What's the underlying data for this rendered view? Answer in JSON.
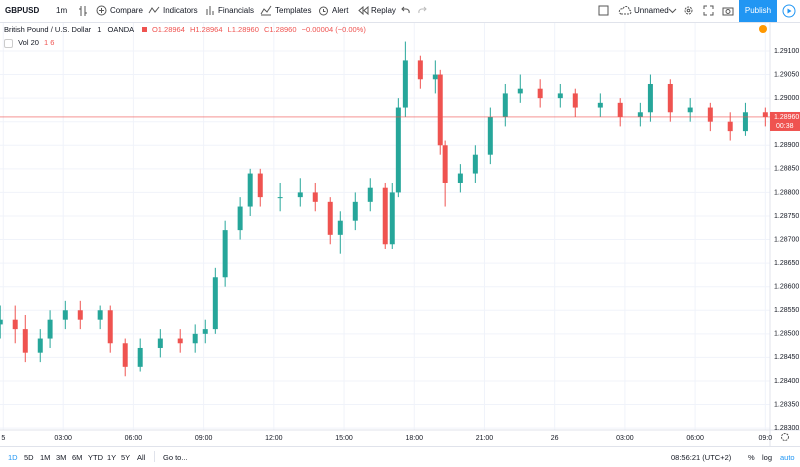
{
  "toolbar": {
    "symbol": "GBPUSD",
    "interval": "1m",
    "buttons": [
      "Compare",
      "Indicators",
      "Financials",
      "Templates",
      "Alert",
      "Replay"
    ],
    "layout": "Unnamed",
    "publish": "Publish"
  },
  "legend": {
    "name": "British Pound / U.S. Dollar",
    "interval": "1",
    "source": "OANDA",
    "ohlc": [
      "O1.28964",
      "H1.28964",
      "L1.28960",
      "C1.28960",
      "−0.00004 (−0.00%)"
    ],
    "volume": "Vol 20",
    "volume_values": "1 6"
  },
  "chart_data": {
    "type": "candlestick",
    "up_color": "#26a69a",
    "down_color": "#ef5350",
    "grid": true,
    "x": [
      0.31,
      0.95,
      1.38,
      2.02,
      2.44,
      3.09,
      3.73,
      4.58,
      5.01,
      5.65,
      6.29,
      7.15,
      8.0,
      8.64,
      9.07,
      9.5,
      9.92,
      10.56,
      10.99,
      11.42,
      12.27,
      13.13,
      13.77,
      14.41,
      14.84,
      15.48,
      16.12,
      16.76,
      17.06,
      17.32,
      17.62,
      18.26,
      18.9,
      19.11,
      19.32,
      19.97,
      20.61,
      21.25,
      21.89,
      22.53,
      23.38,
      24.24,
      24.88,
      25.95,
      26.8,
      27.66,
      28.09,
      28.94,
      29.79,
      30.65,
      31.5,
      32.15,
      33.0
    ],
    "open": [
      1.2852,
      1.2853,
      1.2851,
      1.2846,
      1.2849,
      1.2853,
      1.2855,
      1.2853,
      1.2855,
      1.2848,
      1.2843,
      1.2847,
      1.2849,
      1.2848,
      1.285,
      1.2851,
      1.2862,
      1.2872,
      1.2877,
      1.2884,
      1.2879,
      1.2879,
      1.288,
      1.2878,
      1.2871,
      1.2874,
      1.2878,
      1.2881,
      1.2869,
      1.288,
      1.2898,
      1.2908,
      1.2904,
      1.2905,
      1.289,
      1.2882,
      1.2884,
      1.2888,
      1.2896,
      1.2901,
      1.2902,
      1.29,
      1.2901,
      1.2898,
      1.2899,
      1.2896,
      1.2897,
      1.2903,
      1.2897,
      1.2898,
      1.2895,
      1.2893,
      1.2897
    ],
    "high": [
      1.2856,
      1.2856,
      1.2854,
      1.2851,
      1.2855,
      1.2857,
      1.2857,
      1.2856,
      1.2856,
      1.2849,
      1.2849,
      1.2851,
      1.2851,
      1.2852,
      1.2853,
      1.2864,
      1.2874,
      1.2879,
      1.2885,
      1.2885,
      1.2882,
      1.2883,
      1.2882,
      1.2879,
      1.2876,
      1.288,
      1.2883,
      1.2882,
      1.2882,
      1.29,
      1.2912,
      1.2909,
      1.2908,
      1.2906,
      1.2891,
      1.2886,
      1.289,
      1.2898,
      1.2903,
      1.2905,
      1.2904,
      1.2903,
      1.2902,
      1.2901,
      1.29,
      1.2899,
      1.2905,
      1.2904,
      1.29,
      1.2899,
      1.2897,
      1.2899,
      1.2898
    ],
    "low": [
      1.2849,
      1.2848,
      1.2844,
      1.2844,
      1.2847,
      1.2851,
      1.2851,
      1.2851,
      1.2846,
      1.2841,
      1.2842,
      1.2845,
      1.2846,
      1.2846,
      1.2848,
      1.285,
      1.286,
      1.287,
      1.2875,
      1.2877,
      1.2876,
      1.2877,
      1.2876,
      1.2869,
      1.2867,
      1.2872,
      1.2876,
      1.2868,
      1.2868,
      1.2879,
      1.2896,
      1.2902,
      1.2901,
      1.2888,
      1.2877,
      1.288,
      1.2882,
      1.2886,
      1.2894,
      1.2899,
      1.2898,
      1.2898,
      1.2896,
      1.2896,
      1.2894,
      1.2894,
      1.2895,
      1.2895,
      1.2895,
      1.2893,
      1.2891,
      1.2892,
      1.2894
    ],
    "close": [
      1.2853,
      1.2851,
      1.2846,
      1.2849,
      1.2853,
      1.2855,
      1.2853,
      1.2855,
      1.2848,
      1.2843,
      1.2847,
      1.2849,
      1.2848,
      1.285,
      1.2851,
      1.2862,
      1.2872,
      1.2877,
      1.2884,
      1.2879,
      1.2879,
      1.288,
      1.2878,
      1.2871,
      1.2874,
      1.2878,
      1.2881,
      1.2869,
      1.288,
      1.2898,
      1.2908,
      1.2904,
      1.2905,
      1.289,
      1.2882,
      1.2884,
      1.2888,
      1.2896,
      1.2901,
      1.2902,
      1.29,
      1.2901,
      1.2898,
      1.2899,
      1.2896,
      1.2897,
      1.2903,
      1.2897,
      1.2898,
      1.2895,
      1.2893,
      1.2897,
      1.2896
    ],
    "xlim": [
      0.3,
      33.2
    ],
    "ylim": [
      1.28296,
      1.29153
    ],
    "xticks": [
      {
        "value": 0.44,
        "label": "5"
      },
      {
        "value": 3,
        "label": "03:00"
      },
      {
        "value": 6,
        "label": "06:00"
      },
      {
        "value": 9,
        "label": "09:00"
      },
      {
        "value": 12,
        "label": "12:00"
      },
      {
        "value": 15,
        "label": "15:00"
      },
      {
        "value": 18,
        "label": "18:00"
      },
      {
        "value": 21,
        "label": "21:00"
      },
      {
        "value": 24,
        "label": "26"
      },
      {
        "value": 27,
        "label": "03:00"
      },
      {
        "value": 30,
        "label": "06:00"
      },
      {
        "value": 33,
        "label": "09:0"
      }
    ],
    "yticks": [
      {
        "value": 1.291,
        "label": "1.29100"
      },
      {
        "value": 1.2905,
        "label": "1.29050"
      },
      {
        "value": 1.29,
        "label": "1.29000"
      },
      {
        "value": 1.2895,
        "label": "1.28950"
      },
      {
        "value": 1.289,
        "label": "1.28900"
      },
      {
        "value": 1.2885,
        "label": "1.28850"
      },
      {
        "value": 1.288,
        "label": "1.28800"
      },
      {
        "value": 1.2875,
        "label": "1.28750"
      },
      {
        "value": 1.287,
        "label": "1.28700"
      },
      {
        "value": 1.2865,
        "label": "1.28650"
      },
      {
        "value": 1.286,
        "label": "1.28600"
      },
      {
        "value": 1.2855,
        "label": "1.28550"
      },
      {
        "value": 1.285,
        "label": "1.28500"
      },
      {
        "value": 1.2845,
        "label": "1.28450"
      },
      {
        "value": 1.284,
        "label": "1.28400"
      },
      {
        "value": 1.2835,
        "label": "1.28350"
      },
      {
        "value": 1.283,
        "label": "1.28300"
      }
    ],
    "price_line": {
      "value": 1.2896,
      "label": "1.28960"
    },
    "countdown": "00:38"
  },
  "bottom_bar": {
    "ranges": [
      "1D",
      "5D",
      "1M",
      "3M",
      "6M",
      "YTD",
      "1Y",
      "5Y",
      "All"
    ],
    "goto": "Go to...",
    "time": "08:56:21 (UTC+2)",
    "percent": "%",
    "log": "log",
    "auto": "auto"
  }
}
